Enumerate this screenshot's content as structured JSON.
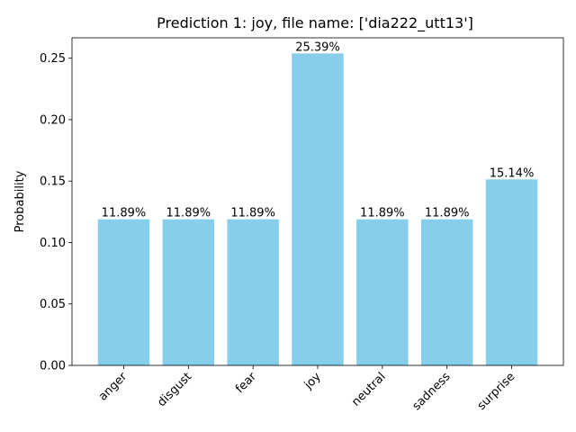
{
  "chart_data": {
    "type": "bar",
    "title": "Prediction 1: joy, file name: ['dia222_utt13']",
    "xlabel": "",
    "ylabel": "Probability",
    "categories": [
      "anger",
      "disgust",
      "fear",
      "joy",
      "neutral",
      "sadness",
      "surprise"
    ],
    "values": [
      0.1189,
      0.1189,
      0.1189,
      0.2539,
      0.1189,
      0.1189,
      0.1514
    ],
    "bar_labels": [
      "11.89%",
      "11.89%",
      "11.89%",
      "25.39%",
      "11.89%",
      "11.89%",
      "15.14%"
    ],
    "yticks": [
      0.0,
      0.05,
      0.1,
      0.15,
      0.2,
      0.25
    ],
    "ytick_labels": [
      "0.00",
      "0.05",
      "0.10",
      "0.15",
      "0.20",
      "0.25"
    ],
    "ylim": [
      0,
      0.2666
    ],
    "bar_color": "#87ceeb",
    "grid": false,
    "xtick_rotation": 45
  }
}
